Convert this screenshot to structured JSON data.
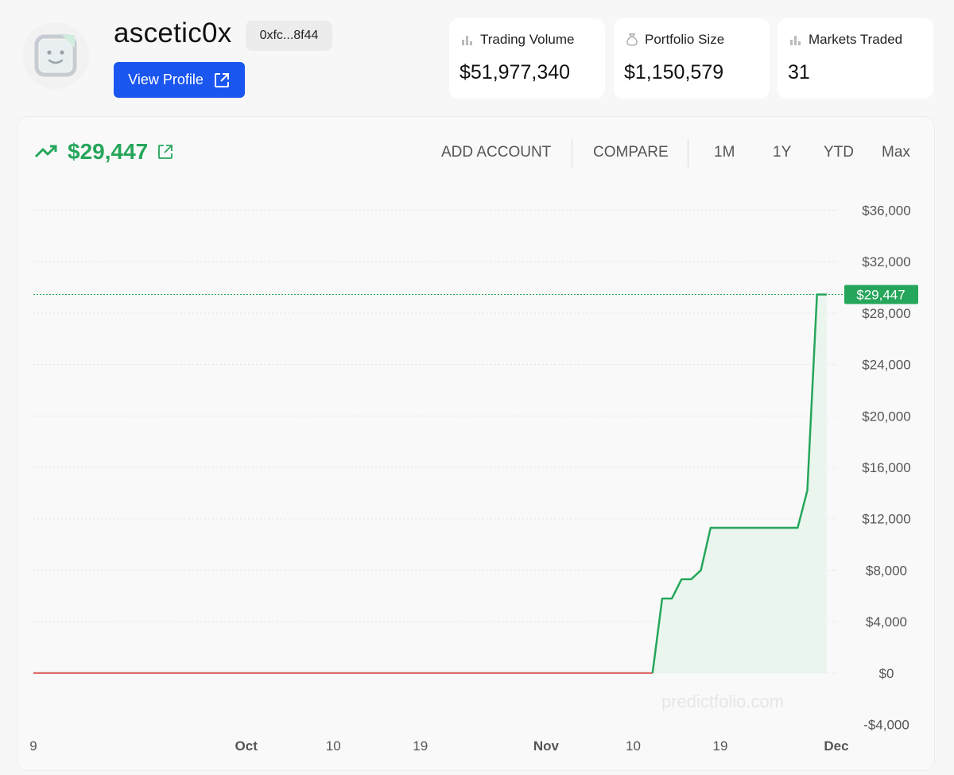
{
  "profile": {
    "name": "ascetic0x",
    "address": "0xfc...8f44",
    "view_profile_label": "View Profile"
  },
  "stats": [
    {
      "label": "Trading Volume",
      "value": "$51,977,340",
      "icon": "bar-chart-icon"
    },
    {
      "label": "Portfolio Size",
      "value": "$1,150,579",
      "icon": "money-bag-icon"
    },
    {
      "label": "Markets Traded",
      "value": "31",
      "icon": "bar-chart-icon"
    }
  ],
  "chart_header": {
    "value": "$29,447",
    "trend_icon": "trending-up-icon",
    "link_icon": "external-link-icon"
  },
  "toolbar": {
    "add_account": "ADD ACCOUNT",
    "compare": "COMPARE",
    "ranges": [
      "1M",
      "1Y",
      "YTD",
      "Max"
    ]
  },
  "watermark": "predictfolio.com",
  "colors": {
    "accent_green": "#26a65b",
    "button_blue": "#1a56ef",
    "negative_red": "#d9534f"
  },
  "chart_data": {
    "type": "line",
    "y_tick_labels": [
      "$36,000",
      "$32,000",
      "$28,000",
      "$24,000",
      "$20,000",
      "$16,000",
      "$12,000",
      "$8,000",
      "$4,000",
      "$0",
      "-$4,000"
    ],
    "y_ticks": [
      36000,
      32000,
      28000,
      24000,
      20000,
      16000,
      12000,
      8000,
      4000,
      0,
      -4000
    ],
    "ylim": [
      -4000,
      36000
    ],
    "x_tick_labels": [
      {
        "label": "9",
        "bold": false,
        "date": "2024-09-09"
      },
      {
        "label": "Oct",
        "bold": true,
        "date": "2024-10-01"
      },
      {
        "label": "10",
        "bold": false,
        "date": "2024-10-10"
      },
      {
        "label": "19",
        "bold": false,
        "date": "2024-10-19"
      },
      {
        "label": "Nov",
        "bold": true,
        "date": "2024-11-01"
      },
      {
        "label": "10",
        "bold": false,
        "date": "2024-11-10"
      },
      {
        "label": "19",
        "bold": false,
        "date": "2024-11-19"
      },
      {
        "label": "Dec",
        "bold": true,
        "date": "2024-12-01"
      }
    ],
    "xlim": [
      "2024-09-09",
      "2024-12-01"
    ],
    "current_value": 29447,
    "current_value_label": "$29,447",
    "series": [
      {
        "points": [
          {
            "x": "2024-09-09",
            "y": 0
          },
          {
            "x": "2024-11-12",
            "y": 0
          },
          {
            "x": "2024-11-13",
            "y": 5800
          },
          {
            "x": "2024-11-14",
            "y": 5800
          },
          {
            "x": "2024-11-15",
            "y": 7300
          },
          {
            "x": "2024-11-16",
            "y": 7300
          },
          {
            "x": "2024-11-17",
            "y": 8000
          },
          {
            "x": "2024-11-18",
            "y": 11300
          },
          {
            "x": "2024-11-27",
            "y": 11300
          },
          {
            "x": "2024-11-28",
            "y": 14200
          },
          {
            "x": "2024-11-29",
            "y": 29447
          },
          {
            "x": "2024-11-30",
            "y": 29447
          }
        ]
      }
    ],
    "grid": true
  }
}
